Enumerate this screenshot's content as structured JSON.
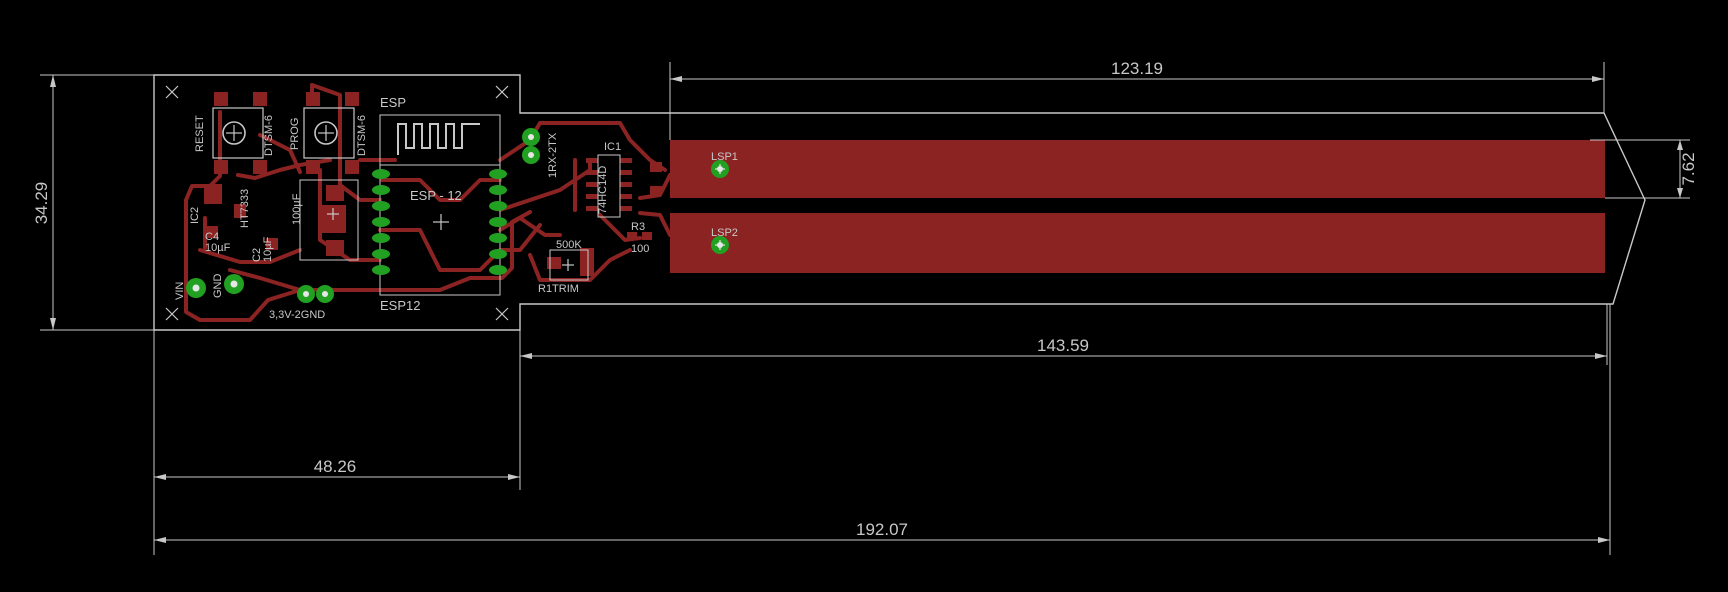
{
  "dimensions": {
    "total_length": "192.07",
    "probe_length": "143.59",
    "electrode_length": "123.19",
    "board_width": "48.26",
    "board_height": "34.29",
    "electrode_gap": "7.62"
  },
  "labels": {
    "reset": "RESET",
    "prog": "PROG",
    "dtsm1": "DTSM-6",
    "dtsm2": "DTSM-6",
    "esp": "ESP",
    "esp12_center": "ESP - 12",
    "esp12_bottom": "ESP12",
    "ic2": "IC2",
    "ht7333": "HT7333",
    "c4": "C4",
    "c4_val": "10µF",
    "c2": "C2",
    "c2_val": "10µF",
    "cap_small": "100µF",
    "vin": "VIN",
    "gnd": "GND",
    "power_header": "3,3V-2GND",
    "uart_header": "1RX-2TX",
    "ic1": "IC1",
    "ic1_part": "74HC14D",
    "r1": "500K",
    "r1trim": "R1TRIM",
    "r3": "R3",
    "r3_val": "100",
    "lsp1": "LSP1",
    "lsp2": "LSP2"
  },
  "colors": {
    "background": "#000000",
    "outline": "#c8c8c8",
    "copper": "#8c2323",
    "via": "#22a022"
  }
}
